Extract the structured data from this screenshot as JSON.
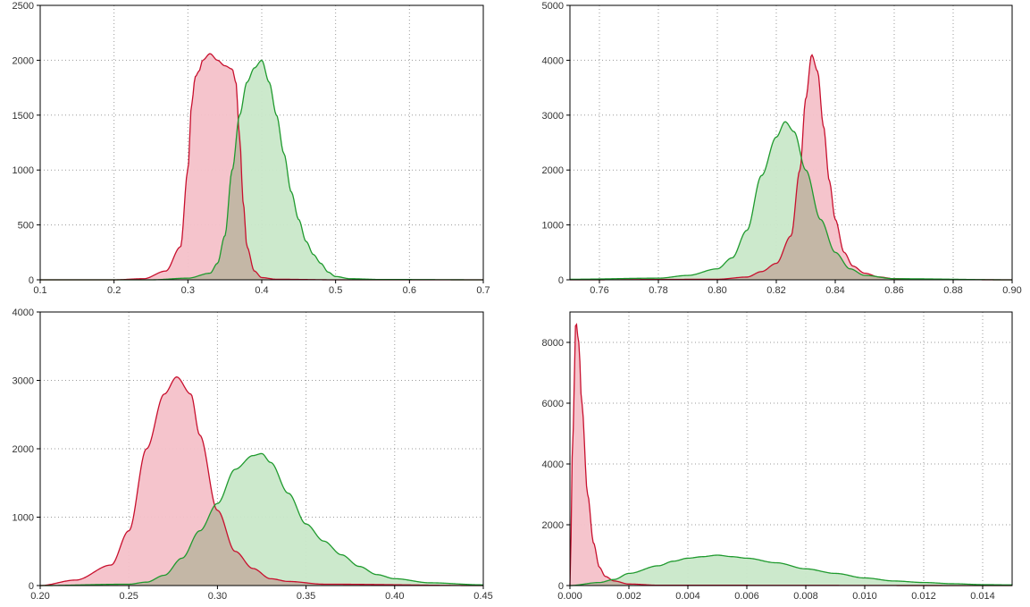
{
  "colors": {
    "red_line": "#c8102e",
    "red_fill": "#f4c1c9",
    "green_line": "#1f9a2e",
    "green_fill": "#c9e8c9",
    "overlap_fill": "#c4b7a6"
  },
  "chart_data": [
    {
      "type": "area",
      "grid": true,
      "xlim": [
        0.1,
        0.7
      ],
      "ylim": [
        0,
        2500
      ],
      "xticks": [
        "0.1",
        "0.2",
        "0.3",
        "0.4",
        "0.5",
        "0.6",
        "0.7"
      ],
      "yticks": [
        "0",
        "500",
        "1000",
        "1500",
        "2000",
        "2500"
      ],
      "series": [
        {
          "color": "red",
          "x": [
            0.1,
            0.2,
            0.24,
            0.27,
            0.29,
            0.3,
            0.305,
            0.31,
            0.315,
            0.32,
            0.33,
            0.34,
            0.35,
            0.36,
            0.365,
            0.37,
            0.375,
            0.38,
            0.39,
            0.4,
            0.42,
            0.5,
            0.7
          ],
          "y": [
            0,
            0,
            10,
            80,
            300,
            1000,
            1600,
            1850,
            1900,
            2000,
            2060,
            2000,
            1950,
            1920,
            1800,
            1300,
            700,
            300,
            80,
            20,
            5,
            0,
            0
          ]
        },
        {
          "color": "green",
          "x": [
            0.1,
            0.25,
            0.3,
            0.33,
            0.34,
            0.35,
            0.36,
            0.37,
            0.38,
            0.39,
            0.4,
            0.41,
            0.42,
            0.43,
            0.44,
            0.45,
            0.46,
            0.47,
            0.48,
            0.49,
            0.5,
            0.52,
            0.56,
            0.7
          ],
          "y": [
            0,
            0,
            15,
            60,
            150,
            400,
            1000,
            1500,
            1800,
            1930,
            2000,
            1800,
            1500,
            1150,
            800,
            550,
            350,
            230,
            150,
            70,
            30,
            10,
            3,
            0
          ]
        }
      ]
    },
    {
      "type": "area",
      "grid": true,
      "xlim": [
        0.75,
        0.9
      ],
      "ylim": [
        0,
        5000
      ],
      "xticks": [
        "0.76",
        "0.78",
        "0.80",
        "0.82",
        "0.84",
        "0.86",
        "0.88",
        "0.90"
      ],
      "yticks": [
        "0",
        "1000",
        "2000",
        "3000",
        "4000",
        "5000"
      ],
      "series": [
        {
          "color": "red",
          "x": [
            0.75,
            0.8,
            0.81,
            0.815,
            0.82,
            0.825,
            0.828,
            0.83,
            0.832,
            0.834,
            0.836,
            0.838,
            0.84,
            0.843,
            0.846,
            0.85,
            0.855,
            0.86,
            0.87,
            0.9
          ],
          "y": [
            0,
            10,
            50,
            150,
            300,
            800,
            2000,
            3300,
            4100,
            3800,
            2800,
            1800,
            1100,
            500,
            250,
            120,
            50,
            20,
            5,
            0
          ]
        },
        {
          "color": "green",
          "x": [
            0.75,
            0.78,
            0.79,
            0.8,
            0.805,
            0.81,
            0.815,
            0.82,
            0.823,
            0.826,
            0.83,
            0.835,
            0.84,
            0.845,
            0.85,
            0.86,
            0.9
          ],
          "y": [
            10,
            30,
            80,
            200,
            400,
            900,
            1900,
            2600,
            2880,
            2700,
            2000,
            1100,
            500,
            200,
            80,
            20,
            0
          ]
        }
      ]
    },
    {
      "type": "area",
      "grid": true,
      "xlim": [
        0.2,
        0.45
      ],
      "ylim": [
        0,
        4000
      ],
      "xticks": [
        "0.20",
        "0.25",
        "0.30",
        "0.35",
        "0.40",
        "0.45"
      ],
      "yticks": [
        "0",
        "1000",
        "2000",
        "3000",
        "4000"
      ],
      "series": [
        {
          "color": "red",
          "x": [
            0.2,
            0.22,
            0.24,
            0.25,
            0.26,
            0.27,
            0.277,
            0.285,
            0.29,
            0.3,
            0.31,
            0.32,
            0.33,
            0.34,
            0.36,
            0.45
          ],
          "y": [
            0,
            80,
            300,
            800,
            2000,
            2800,
            3050,
            2800,
            2200,
            1100,
            500,
            250,
            100,
            60,
            20,
            0
          ]
        },
        {
          "color": "green",
          "x": [
            0.2,
            0.25,
            0.26,
            0.27,
            0.28,
            0.29,
            0.3,
            0.31,
            0.32,
            0.325,
            0.33,
            0.34,
            0.35,
            0.36,
            0.37,
            0.38,
            0.39,
            0.4,
            0.42,
            0.45
          ],
          "y": [
            0,
            20,
            50,
            150,
            400,
            800,
            1200,
            1700,
            1900,
            1930,
            1800,
            1350,
            900,
            650,
            450,
            280,
            160,
            100,
            40,
            10
          ]
        }
      ]
    },
    {
      "type": "area",
      "grid": true,
      "xlim": [
        0,
        0.015
      ],
      "ylim": [
        0,
        9000
      ],
      "xticks": [
        "0.000",
        "0.002",
        "0.004",
        "0.006",
        "0.008",
        "0.010",
        "0.012",
        "0.014"
      ],
      "yticks": [
        "0",
        "2000",
        "4000",
        "6000",
        "8000"
      ],
      "series": [
        {
          "color": "red",
          "x": [
            0,
            0.0001,
            0.0002,
            0.0003,
            0.0004,
            0.0006,
            0.0008,
            0.001,
            0.0012,
            0.0015,
            0.002,
            0.003,
            0.015
          ],
          "y": [
            0,
            5000,
            8700,
            8000,
            6000,
            3000,
            1400,
            600,
            300,
            150,
            50,
            10,
            0
          ]
        },
        {
          "color": "green",
          "x": [
            0,
            0.001,
            0.0015,
            0.002,
            0.003,
            0.0035,
            0.004,
            0.0045,
            0.005,
            0.0055,
            0.006,
            0.007,
            0.008,
            0.009,
            0.01,
            0.011,
            0.012,
            0.013,
            0.014,
            0.015
          ],
          "y": [
            0,
            100,
            200,
            400,
            650,
            800,
            900,
            950,
            1000,
            950,
            900,
            750,
            550,
            400,
            250,
            150,
            100,
            60,
            30,
            20
          ]
        }
      ]
    }
  ]
}
